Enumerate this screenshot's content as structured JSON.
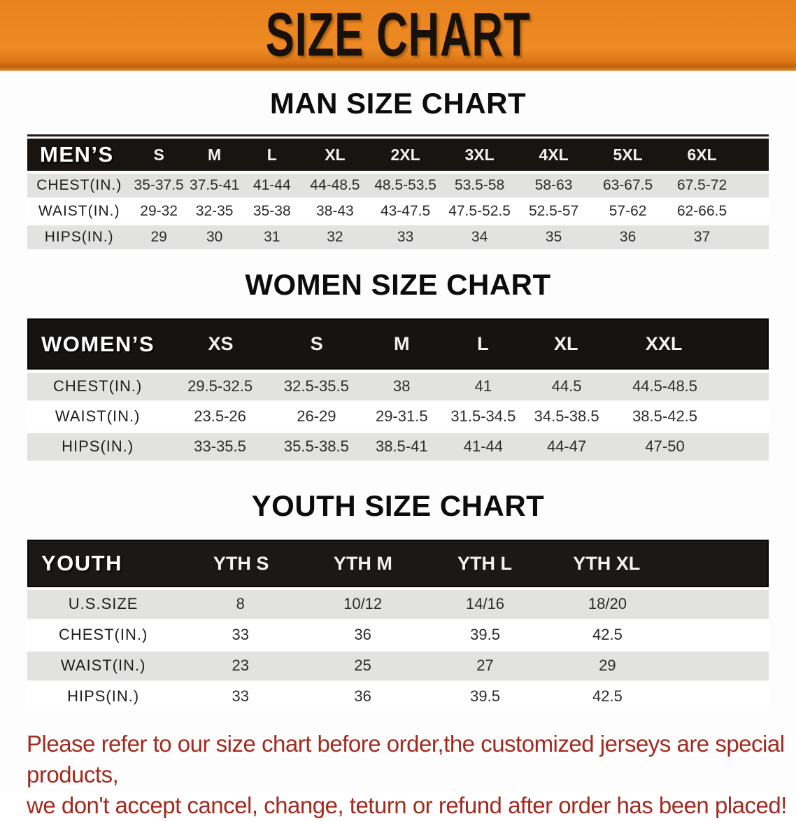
{
  "banner": {
    "title": "SIZE CHART",
    "bg_color": "#ED8722",
    "text_color": "#17110A"
  },
  "sections": {
    "men": {
      "heading": "MAN SIZE CHART"
    },
    "women": {
      "heading": "WOMEN SIZE CHART"
    },
    "youth": {
      "heading": "YOUTH SIZE CHART"
    }
  },
  "men_table": {
    "header": [
      "MEN’S",
      "S",
      "M",
      "L",
      "XL",
      "2XL",
      "3XL",
      "4XL",
      "5XL",
      "6XL"
    ],
    "rows": [
      [
        "CHEST(IN.)",
        "35-37.5",
        "37.5-41",
        "41-44",
        "44-48.5",
        "48.5-53.5",
        "53.5-58",
        "58-63",
        "63-67.5",
        "67.5-72"
      ],
      [
        "WAIST(IN.)",
        "29-32",
        "32-35",
        "35-38",
        "38-43",
        "43-47.5",
        "47.5-52.5",
        "52.5-57",
        "57-62",
        "62-66.5"
      ],
      [
        "HIPS(IN.)",
        "29",
        "30",
        "31",
        "32",
        "33",
        "34",
        "35",
        "36",
        "37"
      ]
    ]
  },
  "women_table": {
    "header": [
      "WOMEN’S",
      "XS",
      "S",
      "M",
      "L",
      "XL",
      "XXL"
    ],
    "rows": [
      [
        "CHEST(IN.)",
        "29.5-32.5",
        "32.5-35.5",
        "38",
        "41",
        "44.5",
        "44.5-48.5"
      ],
      [
        "WAIST(IN.)",
        "23.5-26",
        "26-29",
        "29-31.5",
        "31.5-34.5",
        "34.5-38.5",
        "38.5-42.5"
      ],
      [
        "HIPS(IN.)",
        "33-35.5",
        "35.5-38.5",
        "38.5-41",
        "41-44",
        "44-47",
        "47-50"
      ]
    ]
  },
  "youth_table": {
    "header": [
      "YOUTH",
      "YTH S",
      "YTH M",
      "YTH L",
      "YTH XL"
    ],
    "rows": [
      [
        "U.S.SIZE",
        "8",
        "10/12",
        "14/16",
        "18/20"
      ],
      [
        "CHEST(IN.)",
        "33",
        "36",
        "39.5",
        "42.5"
      ],
      [
        "WAIST(IN.)",
        "23",
        "25",
        "27",
        "29"
      ],
      [
        "HIPS(IN.)",
        "33",
        "36",
        "39.5",
        "42.5"
      ]
    ]
  },
  "note": {
    "line1": "Please refer to our size chart before order,the customized jerseys are special products,",
    "line2": "we don't accept cancel, change, teturn or refund after order has been placed!",
    "color": "#A32A1F"
  },
  "colors": {
    "header_bar": "#171412",
    "row_gray": "#E2E2E1",
    "row_white": "#FFFFFF"
  }
}
